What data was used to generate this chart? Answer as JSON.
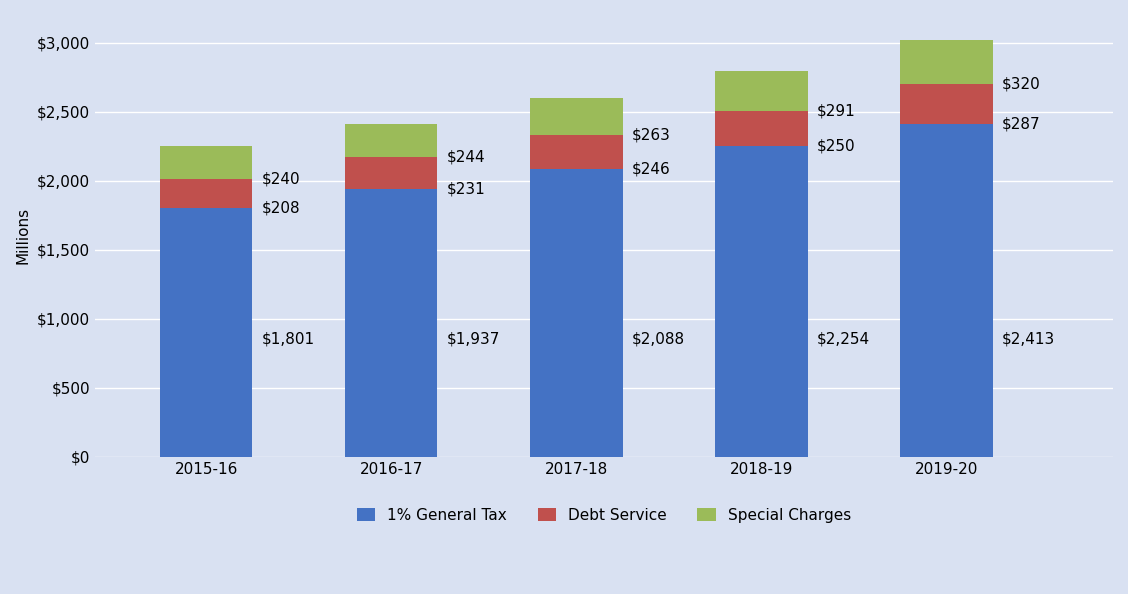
{
  "categories": [
    "2015-16",
    "2016-17",
    "2017-18",
    "2018-19",
    "2019-20"
  ],
  "general_tax": [
    1801,
    1937,
    2088,
    2254,
    2413
  ],
  "debt_service": [
    208,
    231,
    246,
    250,
    287
  ],
  "special_charges": [
    240,
    244,
    263,
    291,
    320
  ],
  "general_tax_color": "#4472C4",
  "debt_service_color": "#C0504D",
  "special_charges_color": "#9BBB59",
  "background_color": "#D9E1F2",
  "plot_bg_color": "#D9E1F2",
  "ylabel": "Millions",
  "ylim": [
    0,
    3200
  ],
  "yticks": [
    0,
    500,
    1000,
    1500,
    2000,
    2500,
    3000
  ],
  "legend_labels": [
    "1% General Tax",
    "Debt Service",
    "Special Charges"
  ],
  "bar_width": 0.5,
  "annotation_fontsize": 11,
  "axis_label_fontsize": 11,
  "tick_fontsize": 11,
  "legend_fontsize": 11
}
